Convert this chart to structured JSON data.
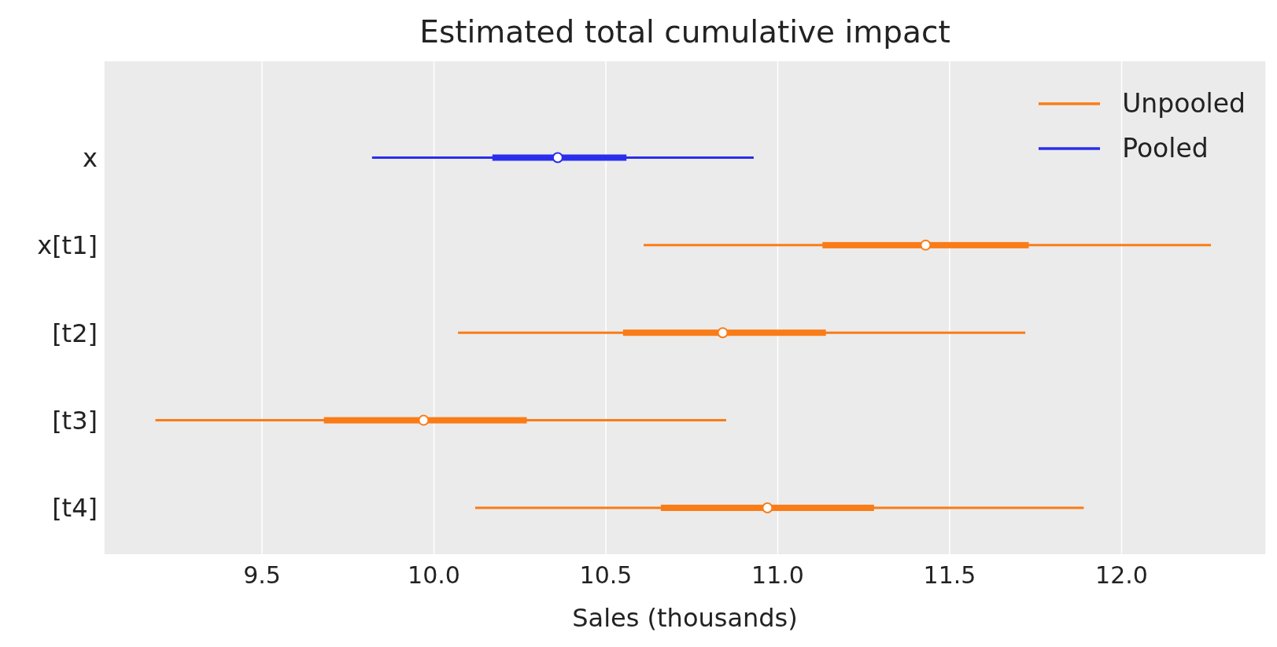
{
  "chart_data": {
    "type": "box",
    "orientation": "horizontal",
    "title": "Estimated total cumulative impact",
    "xlabel": "Sales (thousands)",
    "categories": [
      "x",
      "x[t1]",
      "[t2]",
      "[t3]",
      "[t4]"
    ],
    "series": [
      {
        "name": "Unpooled",
        "color": "#fa7c17",
        "boxes": [
          null,
          {
            "low": 10.61,
            "q1": 11.13,
            "median": 11.43,
            "q3": 11.73,
            "high": 12.26
          },
          {
            "low": 10.07,
            "q1": 10.55,
            "median": 10.84,
            "q3": 11.14,
            "high": 11.72
          },
          {
            "low": 9.19,
            "q1": 9.68,
            "median": 9.97,
            "q3": 10.27,
            "high": 10.85
          },
          {
            "low": 10.12,
            "q1": 10.66,
            "median": 10.97,
            "q3": 11.28,
            "high": 11.89
          }
        ]
      },
      {
        "name": "Pooled",
        "color": "#2a2eec",
        "boxes": [
          {
            "low": 9.82,
            "q1": 10.17,
            "median": 10.36,
            "q3": 10.56,
            "high": 10.93
          },
          null,
          null,
          null,
          null
        ]
      }
    ],
    "xlim": [
      9.04,
      12.42
    ],
    "xticks": [
      9.5,
      {
        "value": 10,
        "label": "10.0"
      },
      10.5,
      {
        "value": 11,
        "label": "11.0"
      },
      11.5,
      {
        "value": 12,
        "label": "12.0"
      }
    ],
    "grid": "x",
    "legend": "top right",
    "marker": "circle"
  }
}
